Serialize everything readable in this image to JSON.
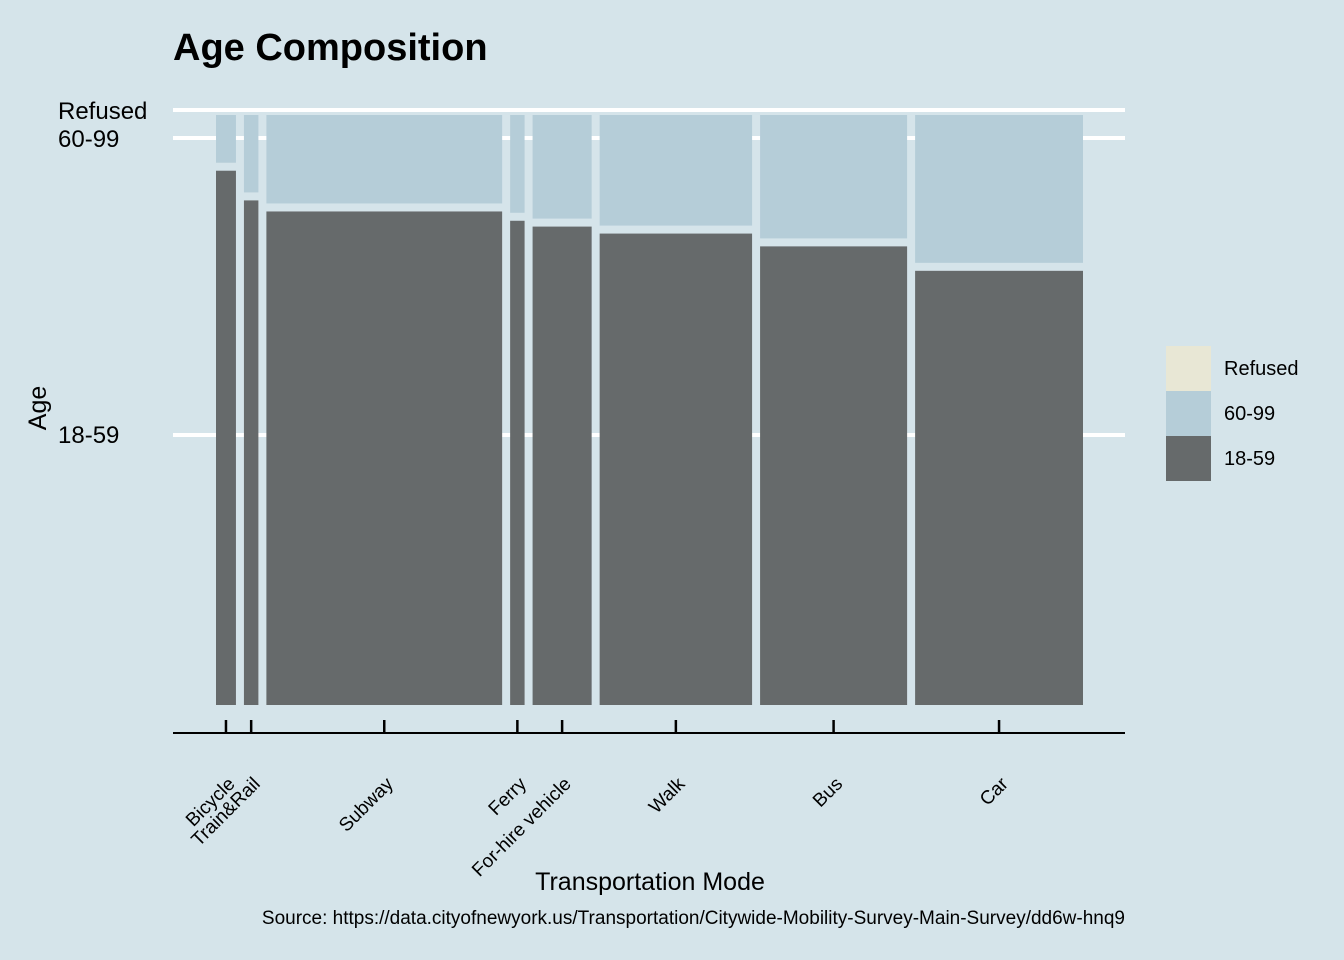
{
  "chart_data": {
    "type": "mosaic",
    "title": "Age Composition",
    "xlabel": "Transportation Mode",
    "ylabel": "Age",
    "caption": "Source: https://data.cityofnewyork.us/Transportation/Citywide-Mobility-Survey-Main-Survey/dd6w-hnq9",
    "categories": [
      "Bicycle",
      "Train&Rail",
      "Subway",
      "Ferry",
      "For-hire vehicle",
      "Walk",
      "Bus",
      "Car"
    ],
    "category_widths": [
      0.0236,
      0.0171,
      0.279,
      0.0171,
      0.0699,
      0.1804,
      0.174,
      0.1987
    ],
    "series": [
      {
        "name": "18-59",
        "color": "#666a6b",
        "values": [
          0.918,
          0.867,
          0.848,
          0.832,
          0.822,
          0.81,
          0.788,
          0.746
        ]
      },
      {
        "name": "60-99",
        "color": "#b5cdd8",
        "values": [
          0.082,
          0.133,
          0.152,
          0.168,
          0.178,
          0.19,
          0.212,
          0.254
        ]
      },
      {
        "name": "Refused",
        "color": "#e8e7d5",
        "values": [
          0,
          0,
          0,
          0,
          0,
          0,
          0,
          0
        ]
      }
    ],
    "y_tick_labels": [
      "18-59",
      "60-99",
      "Refused"
    ],
    "legend": {
      "position": "right",
      "entries": [
        {
          "label": "Refused",
          "color": "#e8e7d5"
        },
        {
          "label": "60-99",
          "color": "#b5cdd8"
        },
        {
          "label": "18-59",
          "color": "#666a6b"
        }
      ]
    },
    "background": "#d5e4ea",
    "grid": "horizontal"
  }
}
